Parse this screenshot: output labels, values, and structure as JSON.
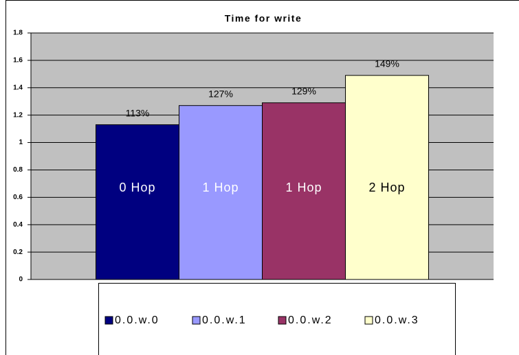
{
  "chart_data": {
    "type": "bar",
    "title": "Time for write",
    "categories": [
      null
    ],
    "series": [
      {
        "name": "0.0.w.0",
        "color": "#000080",
        "values": [
          1.13
        ],
        "value_labels": [
          "113%"
        ],
        "annotation": "0 Hop",
        "annotation_color": "#ffffff"
      },
      {
        "name": "0.0.w.1",
        "color": "#9999ff",
        "values": [
          1.27
        ],
        "value_labels": [
          "127%"
        ],
        "annotation": "1 Hop",
        "annotation_color": "#ffffff"
      },
      {
        "name": "0.0.w.2",
        "color": "#993366",
        "values": [
          1.29
        ],
        "value_labels": [
          "129%"
        ],
        "annotation": "1 Hop",
        "annotation_color": "#ffffff"
      },
      {
        "name": "0.0.w.3",
        "color": "#ffffcc",
        "values": [
          1.49
        ],
        "value_labels": [
          "149%"
        ],
        "annotation": "2 Hop",
        "annotation_color": "#000000"
      }
    ],
    "ylim": [
      0,
      1.8
    ],
    "yticks": [
      0,
      0.2,
      0.4,
      0.6,
      0.8,
      1,
      1.2,
      1.4,
      1.6,
      1.8
    ],
    "grid": true,
    "plot_background": "#c0c0c0",
    "legend": "bottom"
  }
}
